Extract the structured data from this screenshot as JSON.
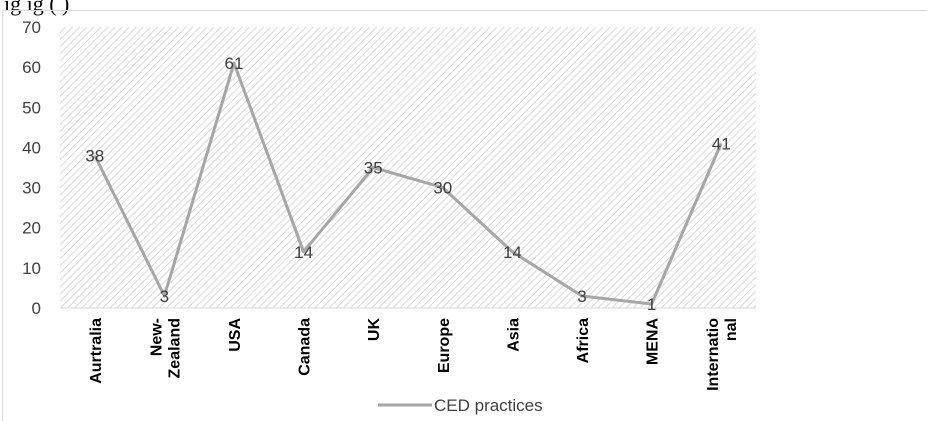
{
  "caption": "ig                                                                   ig       (        )",
  "chart_data": {
    "type": "line",
    "categories": [
      "Aurtralia",
      "New-Zealand",
      "USA",
      "Canada",
      "UK",
      "Europe",
      "Asia",
      "Africa",
      "MENA",
      "International"
    ],
    "category_lines": [
      [
        "Aurtralia"
      ],
      [
        "New-",
        "Zealand"
      ],
      [
        "USA"
      ],
      [
        "Canada"
      ],
      [
        "UK"
      ],
      [
        "Europe"
      ],
      [
        "Asia"
      ],
      [
        "Africa"
      ],
      [
        "MENA"
      ],
      [
        "Internatio",
        "nal"
      ]
    ],
    "series": [
      {
        "name": "CED practices",
        "values": [
          38,
          3,
          61,
          14,
          35,
          30,
          14,
          3,
          1,
          41
        ]
      }
    ],
    "data_labels": true,
    "ylim": [
      0,
      70
    ],
    "yticks": [
      0,
      10,
      20,
      30,
      40,
      50,
      60,
      70
    ],
    "grid": false,
    "legend": "bottom",
    "colors": {
      "line": "#a6a6a6",
      "hatch": "#d9d9d9",
      "axis": "#d9d9d9"
    }
  }
}
